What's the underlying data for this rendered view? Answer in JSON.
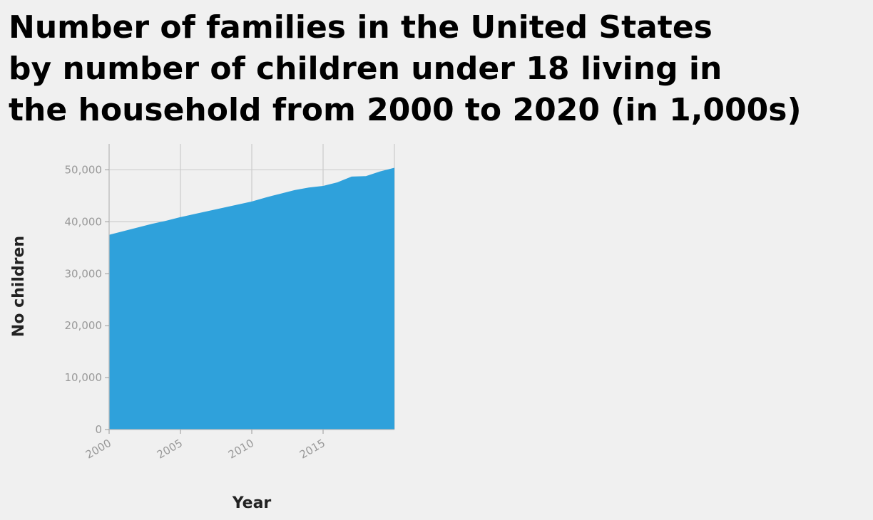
{
  "chart_data": {
    "type": "area",
    "title_lines": [
      "Number of families in the United States",
      "by number of children under 18 living in",
      "the household from 2000 to 2020 (in 1,000s)"
    ],
    "xlabel": "Year",
    "ylabel": "No children",
    "xlim": [
      2000,
      2020
    ],
    "ylim": [
      0,
      55000
    ],
    "x_ticks": [
      2000,
      2005,
      2010,
      2015
    ],
    "x_tick_labels": [
      "2000",
      "2005",
      "2010",
      "2015"
    ],
    "y_ticks": [
      0,
      10000,
      20000,
      30000,
      40000,
      50000
    ],
    "y_tick_labels": [
      "0",
      "10,000",
      "20,000",
      "30,000",
      "40,000",
      "50,000"
    ],
    "grid": true,
    "color": "#2fa1db",
    "series": [
      {
        "x": [
          2000,
          2001,
          2002,
          2003,
          2004,
          2005,
          2006,
          2007,
          2008,
          2009,
          2010,
          2011,
          2012,
          2013,
          2014,
          2015,
          2016,
          2017,
          2018,
          2019,
          2020
        ],
        "values": [
          37500,
          38200,
          38900,
          39600,
          40200,
          40900,
          41500,
          42100,
          42700,
          43300,
          43900,
          44700,
          45400,
          46100,
          46600,
          46900,
          47600,
          48700,
          48800,
          49700,
          50400
        ]
      }
    ]
  }
}
